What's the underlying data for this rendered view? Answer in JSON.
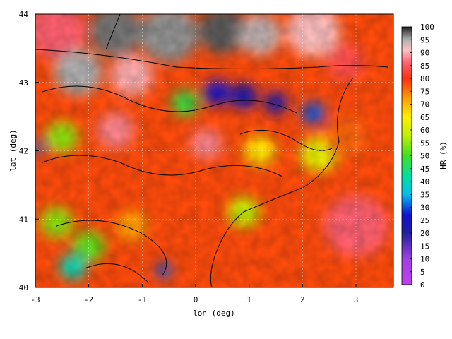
{
  "chart_data": {
    "type": "heatmap",
    "title": "",
    "xlabel": "lon (deg)",
    "ylabel": "lat (deg)",
    "xlim": [
      -3,
      3.7
    ],
    "ylim": [
      40,
      44
    ],
    "x_ticks": [
      -3,
      -2,
      -1,
      0,
      1,
      2,
      3
    ],
    "y_ticks": [
      40,
      41,
      42,
      43,
      44
    ],
    "x_tick_labels": [
      "-3",
      "-2",
      "-1",
      "0",
      "1",
      "2",
      "3"
    ],
    "y_tick_labels": [
      "40",
      "41",
      "42",
      "43",
      "44"
    ],
    "grid": true,
    "colorbar": {
      "label": "HR (%)",
      "range": [
        0,
        100
      ],
      "ticks": [
        0,
        5,
        10,
        15,
        20,
        25,
        30,
        35,
        40,
        45,
        50,
        55,
        60,
        65,
        70,
        75,
        80,
        85,
        90,
        95,
        100
      ],
      "tick_labels": [
        "0",
        "5",
        "10",
        "15",
        "20",
        "25",
        "30",
        "35",
        "40",
        "45",
        "50",
        "55",
        "60",
        "65",
        "70",
        "75",
        "80",
        "85",
        "90",
        "95",
        "100"
      ],
      "stops": [
        {
          "v": 0,
          "color": "#c040f0"
        },
        {
          "v": 10,
          "color": "#a040e0"
        },
        {
          "v": 20,
          "color": "#2020a0"
        },
        {
          "v": 27,
          "color": "#1010d0"
        },
        {
          "v": 35,
          "color": "#00c0f0"
        },
        {
          "v": 42,
          "color": "#00e0a0"
        },
        {
          "v": 50,
          "color": "#40e020"
        },
        {
          "v": 58,
          "color": "#c0f000"
        },
        {
          "v": 65,
          "color": "#fff000"
        },
        {
          "v": 72,
          "color": "#ffa000"
        },
        {
          "v": 80,
          "color": "#ff3010"
        },
        {
          "v": 86,
          "color": "#ff6070"
        },
        {
          "v": 91,
          "color": "#ffc0c0"
        },
        {
          "v": 95,
          "color": "#b0b0b0"
        },
        {
          "v": 100,
          "color": "#202020"
        }
      ]
    },
    "field": {
      "background_value": 78,
      "regions": [
        {
          "lon": -2.6,
          "lat": 43.75,
          "r": 0.55,
          "value": 86
        },
        {
          "lon": -1.5,
          "lat": 43.75,
          "r": 0.5,
          "value": 97
        },
        {
          "lon": -0.5,
          "lat": 43.7,
          "r": 0.55,
          "value": 96
        },
        {
          "lon": 0.5,
          "lat": 43.75,
          "r": 0.45,
          "value": 98
        },
        {
          "lon": 1.2,
          "lat": 43.7,
          "r": 0.4,
          "value": 94
        },
        {
          "lon": 2.2,
          "lat": 43.75,
          "r": 0.5,
          "value": 91
        },
        {
          "lon": 2.8,
          "lat": 43.3,
          "r": 0.35,
          "value": 84
        },
        {
          "lon": -2.2,
          "lat": 43.15,
          "r": 0.45,
          "value": 95
        },
        {
          "lon": -1.2,
          "lat": 43.1,
          "r": 0.4,
          "value": 90
        },
        {
          "lon": 0.4,
          "lat": 42.85,
          "r": 0.25,
          "value": 26
        },
        {
          "lon": 0.9,
          "lat": 42.8,
          "r": 0.25,
          "value": 23
        },
        {
          "lon": 1.5,
          "lat": 42.7,
          "r": 0.22,
          "value": 22
        },
        {
          "lon": 2.2,
          "lat": 42.55,
          "r": 0.22,
          "value": 30
        },
        {
          "lon": -0.2,
          "lat": 42.7,
          "r": 0.25,
          "value": 48
        },
        {
          "lon": -1.5,
          "lat": 42.3,
          "r": 0.35,
          "value": 88
        },
        {
          "lon": -2.5,
          "lat": 42.2,
          "r": 0.3,
          "value": 55
        },
        {
          "lon": -2.95,
          "lat": 42.05,
          "r": 0.12,
          "value": 30
        },
        {
          "lon": 0.2,
          "lat": 42.1,
          "r": 0.3,
          "value": 88
        },
        {
          "lon": 1.2,
          "lat": 42.0,
          "r": 0.3,
          "value": 66
        },
        {
          "lon": 2.3,
          "lat": 41.95,
          "r": 0.35,
          "value": 62
        },
        {
          "lon": -2.6,
          "lat": 40.95,
          "r": 0.3,
          "value": 55
        },
        {
          "lon": -2.0,
          "lat": 40.6,
          "r": 0.3,
          "value": 52
        },
        {
          "lon": -2.3,
          "lat": 40.3,
          "r": 0.25,
          "value": 40
        },
        {
          "lon": -1.2,
          "lat": 40.9,
          "r": 0.3,
          "value": 72
        },
        {
          "lon": -0.6,
          "lat": 40.25,
          "r": 0.15,
          "value": 30
        },
        {
          "lon": 0.9,
          "lat": 41.1,
          "r": 0.3,
          "value": 58
        },
        {
          "lon": 3.0,
          "lat": 40.9,
          "r": 0.6,
          "value": 86
        },
        {
          "lon": 2.8,
          "lat": 42.2,
          "r": 0.4,
          "value": 76
        }
      ]
    }
  }
}
